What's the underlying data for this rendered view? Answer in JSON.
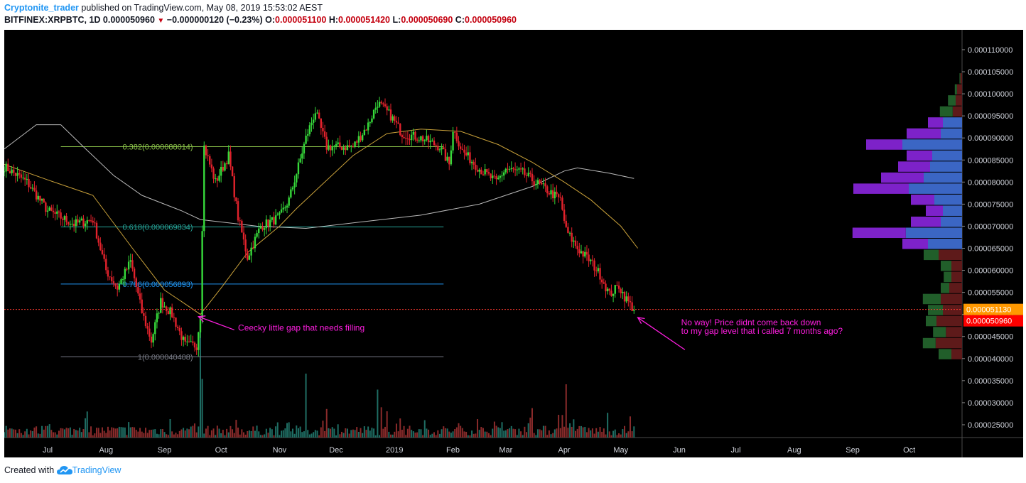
{
  "header": {
    "author": "Cryptonite_trader",
    "published_text": "published on TradingView.com, May 08, 2019 15:53:02 AEST",
    "symbol": "BITFINEX:XRPBTC, 1D",
    "last": "0.000050960",
    "change": "−0.000000120 (−0.23%)",
    "o_label": "O:",
    "o_value": "0.000051100",
    "h_label": "H:",
    "h_value": "0.000051420",
    "l_label": "L:",
    "l_value": "0.000050690",
    "c_label": "C:",
    "c_value": "0.000050960"
  },
  "footer": {
    "created_with": "Created with",
    "brand": "TradingView"
  },
  "colors": {
    "background": "#000000",
    "up": "#36d93a",
    "down": "#e2222c",
    "vol_up": "#1f6e64",
    "vol_down": "#8a2b2b",
    "ma_long": "#b9b9b9",
    "ma_short": "#c9a13a",
    "fib_382": "#8bc34a",
    "fib_618": "#26a69a",
    "fib_786": "#2196f3",
    "fib_1": "#787b86",
    "vp_up": "#215e2a",
    "vp_down": "#5e1a1a",
    "vp_value_area_up": "#3b66c4",
    "vp_value_area_down": "#7d22c9",
    "annotation": "#ff1ee0",
    "last_price_line": "#ff3b30"
  },
  "chart_data": {
    "type": "candlestick",
    "title": "BITFINEX:XRPBTC, 1D",
    "x_axis": {
      "ticks": [
        {
          "label": "Jul",
          "date": "2018-07-01"
        },
        {
          "label": "Aug",
          "date": "2018-08-01"
        },
        {
          "label": "Sep",
          "date": "2018-09-01"
        },
        {
          "label": "Oct",
          "date": "2018-10-01"
        },
        {
          "label": "Nov",
          "date": "2018-11-01"
        },
        {
          "label": "Dec",
          "date": "2018-12-01"
        },
        {
          "label": "2019",
          "date": "2019-01-01"
        },
        {
          "label": "Feb",
          "date": "2019-02-01"
        },
        {
          "label": "Mar",
          "date": "2019-03-01"
        },
        {
          "label": "Apr",
          "date": "2019-04-01"
        },
        {
          "label": "May",
          "date": "2019-05-01"
        },
        {
          "label": "Jun",
          "date": "2019-06-01"
        },
        {
          "label": "Jul",
          "date": "2019-07-01"
        },
        {
          "label": "Aug",
          "date": "2019-08-01"
        },
        {
          "label": "Sep",
          "date": "2019-09-01"
        },
        {
          "label": "Oct",
          "date": "2019-10-01"
        }
      ],
      "range": [
        "2018-06-08",
        "2019-10-29"
      ]
    },
    "y_axis": {
      "range": [
        2.21e-05,
        0.0001145
      ],
      "ticks": [
        "0.000025000",
        "0.000030000",
        "0.000035000",
        "0.000040000",
        "0.000045000",
        "0.000050000",
        "0.000055000",
        "0.000060000",
        "0.000065000",
        "0.000070000",
        "0.000075000",
        "0.000080000",
        "0.000085000",
        "0.000090000",
        "0.000095000",
        "0.000100000",
        "0.000105000",
        "0.000110000"
      ]
    },
    "price_labels": [
      {
        "label": "0.000051130",
        "value": 5.113e-05,
        "color": "#ff9800"
      },
      {
        "label": "0.000050960",
        "value": 5.096e-05,
        "color": "#ff0000"
      }
    ],
    "price_path": [
      [
        "2018-06-08",
        8.35e-05
      ],
      [
        "2018-06-20",
        8e-05
      ],
      [
        "2018-07-01",
        7.35e-05
      ],
      [
        "2018-07-15",
        7.05e-05
      ],
      [
        "2018-07-25",
        7.15e-05
      ],
      [
        "2018-08-01",
        6e-05
      ],
      [
        "2018-08-07",
        5.6e-05
      ],
      [
        "2018-08-14",
        6.2e-05
      ],
      [
        "2018-08-20",
        5.05e-05
      ],
      [
        "2018-08-25",
        4.4e-05
      ],
      [
        "2018-08-30",
        5.3e-05
      ],
      [
        "2018-09-05",
        5e-05
      ],
      [
        "2018-09-12",
        4.3e-05
      ],
      [
        "2018-09-18",
        4.3e-05
      ],
      [
        "2018-09-20",
        5e-05
      ],
      [
        "2018-09-21",
        7e-05
      ],
      [
        "2018-09-22",
        8.8e-05
      ],
      [
        "2018-09-28",
        8e-05
      ],
      [
        "2018-10-05",
        8.6e-05
      ],
      [
        "2018-10-10",
        7.2e-05
      ],
      [
        "2018-10-15",
        6.3e-05
      ],
      [
        "2018-10-22",
        7e-05
      ],
      [
        "2018-11-01",
        7.2e-05
      ],
      [
        "2018-11-06",
        7.6e-05
      ],
      [
        "2018-11-10",
        8.2e-05
      ],
      [
        "2018-11-15",
        9e-05
      ],
      [
        "2018-11-20",
        9.6e-05
      ],
      [
        "2018-11-26",
        8.8e-05
      ],
      [
        "2018-12-05",
        8.8e-05
      ],
      [
        "2018-12-10",
        8.8e-05
      ],
      [
        "2018-12-18",
        9.3e-05
      ],
      [
        "2018-12-23",
        9.8e-05
      ],
      [
        "2018-12-30",
        9.5e-05
      ],
      [
        "2019-01-05",
        9.1e-05
      ],
      [
        "2019-01-15",
        9e-05
      ],
      [
        "2019-01-25",
        8.8e-05
      ],
      [
        "2019-01-30",
        8.4e-05
      ],
      [
        "2019-02-01",
        9.2e-05
      ],
      [
        "2019-02-06",
        8.7e-05
      ],
      [
        "2019-02-15",
        8.3e-05
      ],
      [
        "2019-02-24",
        8e-05
      ],
      [
        "2019-03-01",
        8.3e-05
      ],
      [
        "2019-03-10",
        8.2e-05
      ],
      [
        "2019-03-20",
        7.9e-05
      ],
      [
        "2019-03-30",
        7.6e-05
      ],
      [
        "2019-04-02",
        6.9e-05
      ],
      [
        "2019-04-08",
        6.5e-05
      ],
      [
        "2019-04-15",
        6.2e-05
      ],
      [
        "2019-04-20",
        5.9e-05
      ],
      [
        "2019-04-25",
        5.45e-05
      ],
      [
        "2019-04-30",
        5.65e-05
      ],
      [
        "2019-05-03",
        5.4e-05
      ],
      [
        "2019-05-08",
        5.1e-05
      ]
    ],
    "moving_average_long": [
      [
        "2018-06-08",
        8.75e-05
      ],
      [
        "2018-06-25",
        9.3e-05
      ],
      [
        "2018-07-08",
        9.3e-05
      ],
      [
        "2018-07-20",
        8.8e-05
      ],
      [
        "2018-08-05",
        8.15e-05
      ],
      [
        "2018-08-20",
        7.7e-05
      ],
      [
        "2018-09-10",
        7.35e-05
      ],
      [
        "2018-09-20",
        7.15e-05
      ],
      [
        "2018-10-20",
        7e-05
      ],
      [
        "2018-11-15",
        6.95e-05
      ],
      [
        "2018-12-15",
        7.1e-05
      ],
      [
        "2019-01-15",
        7.25e-05
      ],
      [
        "2019-02-15",
        7.5e-05
      ],
      [
        "2019-03-15",
        7.9e-05
      ],
      [
        "2019-04-01",
        8.25e-05
      ],
      [
        "2019-04-08",
        8.32e-05
      ],
      [
        "2019-04-25",
        8.2e-05
      ],
      [
        "2019-05-08",
        8.08e-05
      ]
    ],
    "moving_average_short": [
      [
        "2018-06-08",
        8.4e-05
      ],
      [
        "2018-07-01",
        8.05e-05
      ],
      [
        "2018-07-25",
        7.7e-05
      ],
      [
        "2018-08-15",
        6.5e-05
      ],
      [
        "2018-09-01",
        5.55e-05
      ],
      [
        "2018-09-15",
        5.15e-05
      ],
      [
        "2018-09-20",
        5e-05
      ],
      [
        "2018-10-01",
        5.6e-05
      ],
      [
        "2018-10-15",
        6.4e-05
      ],
      [
        "2018-11-01",
        7e-05
      ],
      [
        "2018-11-10",
        7.4e-05
      ],
      [
        "2018-11-25",
        8e-05
      ],
      [
        "2018-12-10",
        8.6e-05
      ],
      [
        "2018-12-28",
        9.1e-05
      ],
      [
        "2019-01-15",
        9.2e-05
      ],
      [
        "2019-02-05",
        9.15e-05
      ],
      [
        "2019-02-25",
        8.85e-05
      ],
      [
        "2019-03-15",
        8.45e-05
      ],
      [
        "2019-04-01",
        8e-05
      ],
      [
        "2019-04-15",
        7.6e-05
      ],
      [
        "2019-05-01",
        7e-05
      ],
      [
        "2019-05-10",
        6.5e-05
      ]
    ],
    "fib_levels": [
      {
        "label": "0.382(0.000088014)",
        "value": 8.8014e-05,
        "from": "2018-07-08",
        "to": "2019-01-27",
        "color": "#8bc34a"
      },
      {
        "label": "0.618(0.000069834)",
        "value": 6.9834e-05,
        "from": "2018-07-08",
        "to": "2019-01-27",
        "color": "#26a69a"
      },
      {
        "label": "0.786(0.000056893)",
        "value": 5.6893e-05,
        "from": "2018-07-08",
        "to": "2019-01-27",
        "color": "#2196f3"
      },
      {
        "label": "1(0.000040408)",
        "value": 4.0408e-05,
        "from": "2018-07-08",
        "to": "2019-01-27",
        "color": "#787b86"
      }
    ],
    "annotations": [
      {
        "text": [
          "Ceecky little gap that needs filling"
        ],
        "arrow_to": [
          "2018-09-19",
          4.95e-05
        ],
        "arrow_from": [
          "2018-10-08",
          4.65e-05
        ],
        "text_at": [
          "2018-10-10",
          4.63e-05
        ]
      },
      {
        "text": [
          "No way! Price didnt come back down",
          "to my gap level that i called 7 months ago?"
        ],
        "arrow_to": [
          "2019-05-10",
          4.93e-05
        ],
        "arrow_from": [
          "2019-06-04",
          4.2e-05
        ],
        "text_at": [
          "2019-06-02",
          4.75e-05
        ]
      }
    ],
    "volume_profile": [
      {
        "price": 0.0001035,
        "up": 2,
        "down": 4
      },
      {
        "price": 0.000101,
        "up": 5,
        "down": 12
      },
      {
        "price": 9.85e-05,
        "up": 18,
        "down": 15
      },
      {
        "price": 9.6e-05,
        "up": 30,
        "down": 22
      },
      {
        "price": 9.35e-05,
        "up": 35,
        "down": 45
      },
      {
        "price": 9.1e-05,
        "up": 80,
        "down": 50
      },
      {
        "price": 8.85e-05,
        "up": 85,
        "down": 140
      },
      {
        "price": 8.6e-05,
        "up": 60,
        "down": 70
      },
      {
        "price": 8.35e-05,
        "up": 75,
        "down": 75
      },
      {
        "price": 8.1e-05,
        "up": 100,
        "down": 90
      },
      {
        "price": 7.85e-05,
        "up": 130,
        "down": 125
      },
      {
        "price": 7.6e-05,
        "up": 55,
        "down": 65
      },
      {
        "price": 7.35e-05,
        "up": 40,
        "down": 45
      },
      {
        "price": 7.1e-05,
        "up": 70,
        "down": 50
      },
      {
        "price": 6.85e-05,
        "up": 125,
        "down": 132
      },
      {
        "price": 6.6e-05,
        "up": 60,
        "down": 80
      },
      {
        "price": 6.35e-05,
        "up": 35,
        "down": 55
      },
      {
        "price": 6.1e-05,
        "up": 25,
        "down": 25
      },
      {
        "price": 5.85e-05,
        "up": 18,
        "down": 25
      },
      {
        "price": 5.6e-05,
        "up": 20,
        "down": 30
      },
      {
        "price": 5.35e-05,
        "up": 42,
        "down": 50
      },
      {
        "price": 5.1e-05,
        "up": 35,
        "down": 45
      },
      {
        "price": 4.85e-05,
        "up": 25,
        "down": 60
      },
      {
        "price": 4.6e-05,
        "up": 30,
        "down": 38
      },
      {
        "price": 4.35e-05,
        "up": 30,
        "down": 62
      },
      {
        "price": 4.1e-05,
        "up": 30,
        "down": 25
      }
    ],
    "volume_profile_value_area": [
      6.6e-05,
      6.85e-05,
      7.1e-05,
      7.35e-05,
      7.6e-05,
      7.85e-05,
      8.1e-05,
      8.35e-05,
      8.6e-05,
      8.85e-05,
      9.1e-05,
      9.35e-05
    ],
    "volume_spikes": [
      {
        "date": "2018-09-20",
        "relative": 1.0
      },
      {
        "date": "2018-09-21",
        "relative": 0.55
      },
      {
        "date": "2018-11-15",
        "relative": 0.6
      },
      {
        "date": "2018-12-23",
        "relative": 0.45
      },
      {
        "date": "2019-04-02",
        "relative": 0.5
      }
    ]
  }
}
